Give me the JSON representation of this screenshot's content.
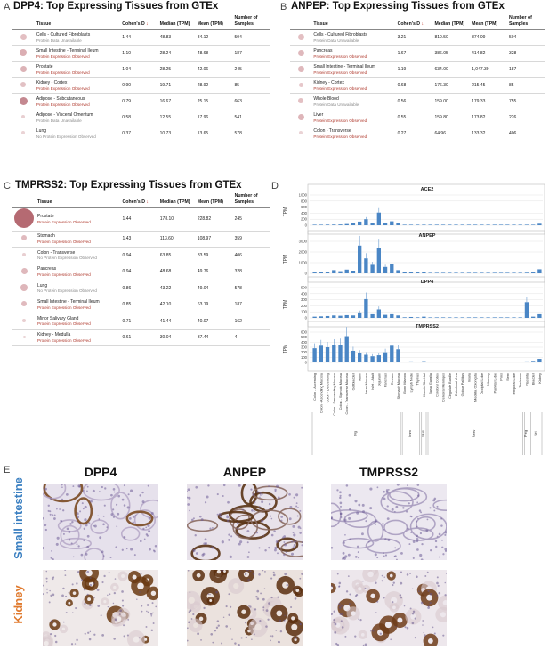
{
  "panels": {
    "A": {
      "letter": "A",
      "title": "DPP4: Top Expressing Tissues from GTEx"
    },
    "B": {
      "letter": "B",
      "title": "ANPEP: Top Expressing Tissues from GTEx"
    },
    "C": {
      "letter": "C",
      "title": "TMPRSS2: Top Expressing Tissues from GTEx"
    },
    "D": {
      "letter": "D"
    },
    "E": {
      "letter": "E"
    }
  },
  "table_headers": {
    "tissue": "Tissue",
    "cohens": "Cohen's D",
    "median": "Median (TPM)",
    "mean": "Mean (TPM)",
    "samples": "Number of Samples",
    "arrow": "↓"
  },
  "tableA": [
    {
      "tissue": "Cells - Cultured Fibroblasts",
      "status": "Protein Data Unavailable",
      "observed": false,
      "d": "1.44",
      "median": "48.83",
      "mean": "84.12",
      "n": "504",
      "dot": 7,
      "color": "#e3bfc2"
    },
    {
      "tissue": "Small Intestine - Terminal Ileum",
      "status": "Protein Expression Observed",
      "observed": true,
      "d": "1.10",
      "median": "28.24",
      "mean": "48.68",
      "n": "187",
      "dot": 8,
      "color": "#dbaeb3"
    },
    {
      "tissue": "Prostate",
      "status": "Protein Expression Observed",
      "observed": true,
      "d": "1.04",
      "median": "28.25",
      "mean": "42.06",
      "n": "245",
      "dot": 7,
      "color": "#dcb3b7"
    },
    {
      "tissue": "Kidney - Cortex",
      "status": "Protein Expression Observed",
      "observed": true,
      "d": "0.90",
      "median": "19.71",
      "mean": "28.92",
      "n": "85",
      "dot": 6,
      "color": "#e2c1c4"
    },
    {
      "tissue": "Adipose - Subcutaneous",
      "status": "Protein Expression Observed",
      "observed": true,
      "d": "0.79",
      "median": "16.67",
      "mean": "25.15",
      "n": "663",
      "dot": 9,
      "color": "#c48890"
    },
    {
      "tissue": "Adipose - Visceral Omentum",
      "status": "Protein Data Unavailable",
      "observed": false,
      "d": "0.58",
      "median": "12.55",
      "mean": "17.96",
      "n": "541",
      "dot": 4,
      "color": "#e8cfd1"
    },
    {
      "tissue": "Lung",
      "status": "No Protein Expression Observed",
      "observed": false,
      "d": "0.37",
      "median": "10.73",
      "mean": "13.65",
      "n": "578",
      "dot": 4,
      "color": "#ead3d5"
    }
  ],
  "tableB": [
    {
      "tissue": "Cells - Cultured Fibroblasts",
      "status": "Protein Data Unavailable",
      "observed": false,
      "d": "3.21",
      "median": "810.50",
      "mean": "874.09",
      "n": "504",
      "dot": 7,
      "color": "#e3bfc2"
    },
    {
      "tissue": "Pancreas",
      "status": "Protein Expression Observed",
      "observed": true,
      "d": "1.67",
      "median": "386.05",
      "mean": "414.82",
      "n": "328",
      "dot": 7,
      "color": "#dfb8bc"
    },
    {
      "tissue": "Small Intestine - Terminal Ileum",
      "status": "Protein Expression Observed",
      "observed": true,
      "d": "1.19",
      "median": "634.00",
      "mean": "1,047.39",
      "n": "187",
      "dot": 7,
      "color": "#dfb8bc"
    },
    {
      "tissue": "Kidney - Cortex",
      "status": "Protein Expression Observed",
      "observed": true,
      "d": "0.68",
      "median": "176.30",
      "mean": "215.45",
      "n": "85",
      "dot": 5,
      "color": "#e6c7ca"
    },
    {
      "tissue": "Whole Blood",
      "status": "Protein Data Unavailable",
      "observed": false,
      "d": "0.56",
      "median": "159.00",
      "mean": "179.33",
      "n": "755",
      "dot": 6,
      "color": "#e3c0c3"
    },
    {
      "tissue": "Liver",
      "status": "Protein Expression Observed",
      "observed": true,
      "d": "0.55",
      "median": "159.80",
      "mean": "173.82",
      "n": "226",
      "dot": 7,
      "color": "#deb5b9"
    },
    {
      "tissue": "Colon - Transverse",
      "status": "Protein Expression Observed",
      "observed": true,
      "d": "0.27",
      "median": "64.96",
      "mean": "133.32",
      "n": "406",
      "dot": 4,
      "color": "#ead3d5"
    }
  ],
  "tableC": [
    {
      "tissue": "Prostate",
      "status": "Protein Expression Observed",
      "observed": true,
      "d": "1.44",
      "median": "178.10",
      "mean": "228.82",
      "n": "245",
      "dot": 22,
      "color": "#b56a72"
    },
    {
      "tissue": "Stomach",
      "status": "Protein Expression Observed",
      "observed": true,
      "d": "1.43",
      "median": "113.60",
      "mean": "108.97",
      "n": "359",
      "dot": 6,
      "color": "#e0babe"
    },
    {
      "tissue": "Colon - Transverse",
      "status": "No Protein Expression Observed",
      "observed": false,
      "d": "0.94",
      "median": "63.85",
      "mean": "83.59",
      "n": "406",
      "dot": 4,
      "color": "#e8cfd1"
    },
    {
      "tissue": "Pancreas",
      "status": "Protein Expression Observed",
      "observed": true,
      "d": "0.94",
      "median": "48.68",
      "mean": "49.76",
      "n": "328",
      "dot": 7,
      "color": "#dfb8bc"
    },
    {
      "tissue": "Lung",
      "status": "No Protein Expression Observed",
      "observed": false,
      "d": "0.86",
      "median": "43.22",
      "mean": "49.04",
      "n": "578",
      "dot": 8,
      "color": "#deb6ba"
    },
    {
      "tissue": "Small Intestine - Terminal Ileum",
      "status": "Protein Expression Observed",
      "observed": true,
      "d": "0.85",
      "median": "42.10",
      "mean": "63.19",
      "n": "187",
      "dot": 6,
      "color": "#e0babe"
    },
    {
      "tissue": "Minor Salivary Gland",
      "status": "Protein Expression Observed",
      "observed": true,
      "d": "0.71",
      "median": "41.44",
      "mean": "40.07",
      "n": "162",
      "dot": 4,
      "color": "#e8cfd1"
    },
    {
      "tissue": "Kidney - Medulla",
      "status": "Protein Expression Observed",
      "observed": true,
      "d": "0.61",
      "median": "30.04",
      "mean": "37.44",
      "n": "4",
      "dot": 3,
      "color": "#ead3d5"
    }
  ],
  "colors": {
    "observed": "#b03a2e",
    "unavailable": "#8a8a8a",
    "bar": "#4a86c5",
    "skin": "#ffffff"
  },
  "chart_data": {
    "type": "bar",
    "ylabel": "TPM",
    "tissues": [
      "Colon - Ascending",
      "Colon - Ascending Mucosa",
      "Colon - Descending",
      "Colon - Descending Mucosa",
      "Colon - Sigmoid Mucosa",
      "Colon - Transverse Mucosa",
      "Gallbladder",
      "Ileum",
      "Ileum Mucosa",
      "Islet - Adult",
      "Jejunum",
      "Pancreas",
      "Rectum",
      "Stomach Mucosa",
      "Bone Marrow",
      "Lymph Node",
      "Thymus",
      "Muscle Skeletal",
      "Basal Ganglia",
      "Cerebral Cortex",
      "Cerebral Meninges",
      "Cingulate Bundle",
      "Entorhinal Area",
      "Globus Pallidus",
      "Insula",
      "Medulla Oblongata",
      "Occipital Lobe",
      "Olfactory",
      "Parietal Lobe",
      "Pons",
      "Stem",
      "Temporal Lobe",
      "Thalamus",
      "Placenta",
      "Bladder",
      "Kidney"
    ],
    "group_brackets": [
      "Dig",
      "Imm",
      "Mus",
      "Nerv",
      "Preg",
      "Uri"
    ],
    "series": [
      {
        "name": "ACE2",
        "yticks": [
          "1000",
          "800",
          "600",
          "400",
          "200",
          "0"
        ],
        "ymax": 1000,
        "values": [
          10,
          15,
          20,
          22,
          25,
          40,
          60,
          120,
          200,
          80,
          420,
          60,
          130,
          70,
          10,
          8,
          5,
          12,
          5,
          4,
          4,
          3,
          3,
          3,
          3,
          3,
          3,
          3,
          3,
          3,
          3,
          3,
          3,
          8,
          10,
          50
        ]
      },
      {
        "name": "ANPEP",
        "yticks": [
          "3000",
          "2000",
          "1000",
          "0"
        ],
        "ymax": 3000,
        "values": [
          80,
          100,
          150,
          300,
          200,
          350,
          250,
          2600,
          1400,
          800,
          2400,
          600,
          900,
          300,
          100,
          120,
          80,
          100,
          50,
          40,
          50,
          40,
          40,
          50,
          40,
          40,
          40,
          40,
          40,
          50,
          40,
          40,
          40,
          60,
          80,
          380
        ]
      },
      {
        "name": "DPP4",
        "yticks": [
          "500",
          "400",
          "300",
          "200",
          "100",
          "0"
        ],
        "ymax": 500,
        "values": [
          20,
          25,
          30,
          40,
          35,
          45,
          40,
          90,
          310,
          60,
          140,
          50,
          60,
          40,
          10,
          15,
          10,
          20,
          8,
          6,
          6,
          6,
          6,
          6,
          6,
          6,
          6,
          6,
          6,
          6,
          6,
          6,
          6,
          260,
          20,
          60
        ]
      },
      {
        "name": "TMPRSS2",
        "yticks": [
          "600",
          "500",
          "400",
          "300",
          "200",
          "100",
          "0"
        ],
        "ymax": 600,
        "values": [
          280,
          330,
          300,
          340,
          350,
          520,
          230,
          180,
          150,
          120,
          140,
          200,
          330,
          260,
          15,
          20,
          10,
          25,
          8,
          6,
          6,
          6,
          6,
          6,
          6,
          6,
          6,
          6,
          6,
          6,
          6,
          6,
          6,
          20,
          30,
          70
        ]
      }
    ]
  },
  "ihc": {
    "columns": [
      "DPP4",
      "ANPEP",
      "TMPRSS2"
    ],
    "rows": [
      {
        "label": "Small intestine",
        "color": "#3a7fc1"
      },
      {
        "label": "Kidney",
        "color": "#e07a2e"
      }
    ]
  }
}
